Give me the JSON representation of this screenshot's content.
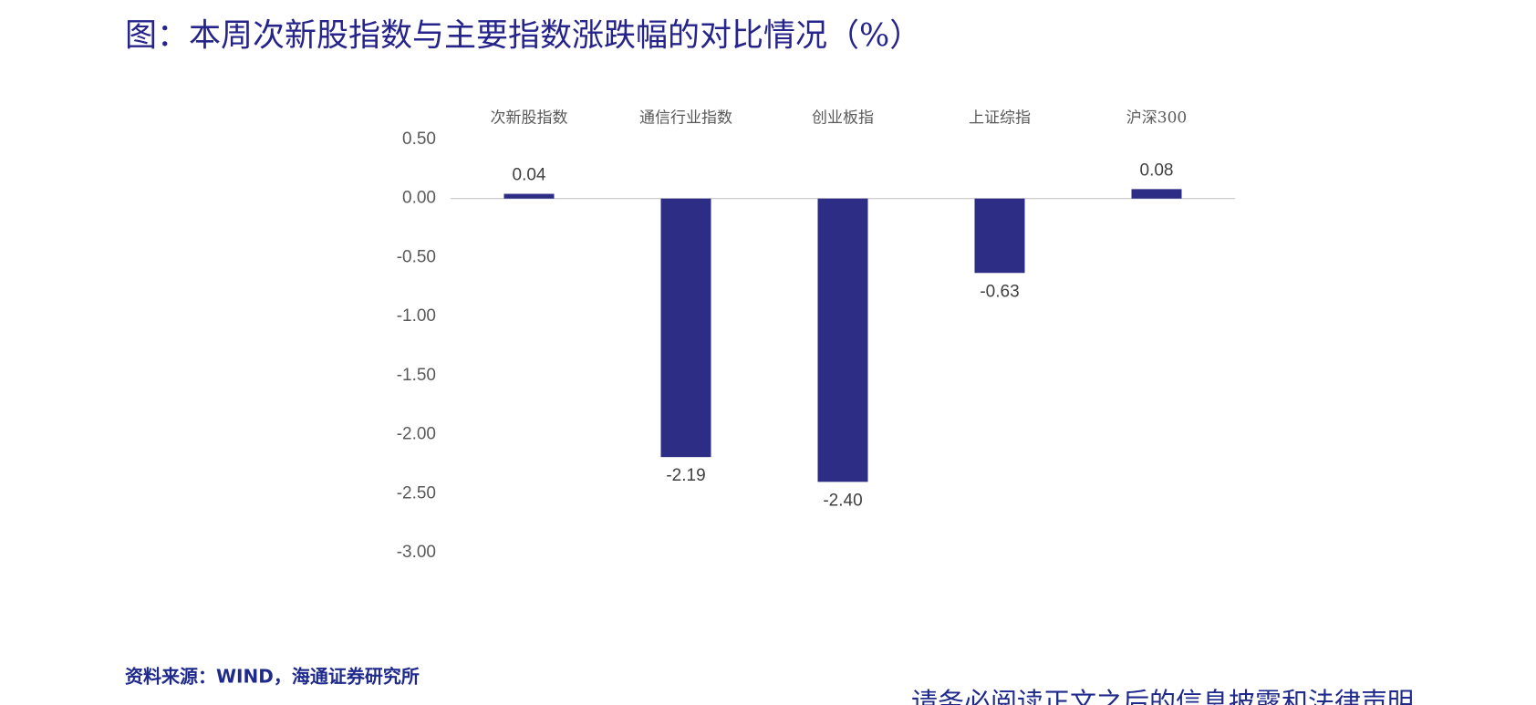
{
  "chart_data": {
    "type": "bar",
    "title": "图：本周次新股指数与主要指数涨跌幅的对比情况（%）",
    "categories": [
      "次新股指数",
      "通信行业指数",
      "创业板指",
      "上证综指",
      "沪深300"
    ],
    "values": [
      0.04,
      -2.19,
      -2.4,
      -0.63,
      0.08
    ],
    "value_labels": [
      "0.04",
      "-2.19",
      "-2.40",
      "-0.63",
      "0.08"
    ],
    "color": "#2e2d86",
    "ylim": [
      -3,
      0.5
    ],
    "yticks": [
      {
        "value": 0.5,
        "label": "0.50"
      },
      {
        "value": 0,
        "label": "0.00"
      },
      {
        "value": -0.5,
        "label": "-0.50"
      },
      {
        "value": -1,
        "label": "-1.00"
      },
      {
        "value": -1.5,
        "label": "-1.50"
      },
      {
        "value": -2,
        "label": "-2.00"
      },
      {
        "value": -2.5,
        "label": "-2.50"
      },
      {
        "value": -3,
        "label": "-3.00"
      }
    ],
    "grid": false,
    "source": "资料来源：WIND，海通证券研究所",
    "footer": "请务必阅读正文之后的信息披露和法律声明"
  }
}
